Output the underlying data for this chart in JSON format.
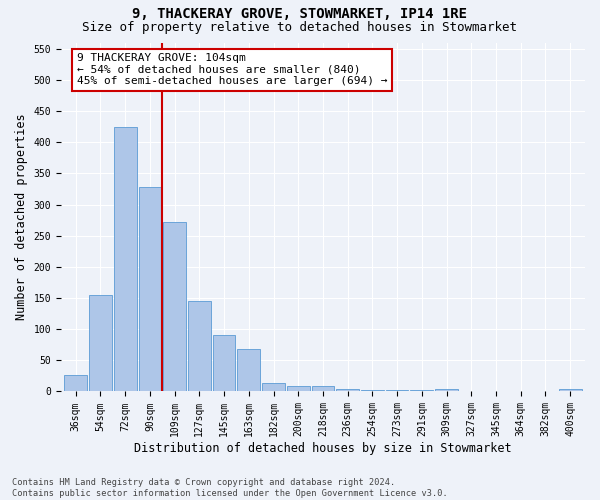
{
  "title": "9, THACKERAY GROVE, STOWMARKET, IP14 1RE",
  "subtitle": "Size of property relative to detached houses in Stowmarket",
  "xlabel": "Distribution of detached houses by size in Stowmarket",
  "ylabel": "Number of detached properties",
  "categories": [
    "36sqm",
    "54sqm",
    "72sqm",
    "90sqm",
    "109sqm",
    "127sqm",
    "145sqm",
    "163sqm",
    "182sqm",
    "200sqm",
    "218sqm",
    "236sqm",
    "254sqm",
    "273sqm",
    "291sqm",
    "309sqm",
    "327sqm",
    "345sqm",
    "364sqm",
    "382sqm",
    "400sqm"
  ],
  "values": [
    27,
    155,
    425,
    328,
    272,
    145,
    90,
    68,
    13,
    9,
    9,
    4,
    2,
    2,
    2,
    4,
    1,
    1,
    1,
    0,
    4
  ],
  "bar_color": "#aec6e8",
  "bar_edge_color": "#5b9bd5",
  "vline_color": "#cc0000",
  "annotation_line1": "9 THACKERAY GROVE: 104sqm",
  "annotation_line2": "← 54% of detached houses are smaller (840)",
  "annotation_line3": "45% of semi-detached houses are larger (694) →",
  "annotation_box_color": "#ffffff",
  "annotation_box_edge": "#cc0000",
  "ylim": [
    0,
    560
  ],
  "yticks": [
    0,
    50,
    100,
    150,
    200,
    250,
    300,
    350,
    400,
    450,
    500,
    550
  ],
  "footnote": "Contains HM Land Registry data © Crown copyright and database right 2024.\nContains public sector information licensed under the Open Government Licence v3.0.",
  "bg_color": "#eef2f9",
  "grid_color": "#ffffff",
  "title_fontsize": 10,
  "subtitle_fontsize": 9,
  "tick_fontsize": 7,
  "label_fontsize": 8.5,
  "annot_fontsize": 8
}
